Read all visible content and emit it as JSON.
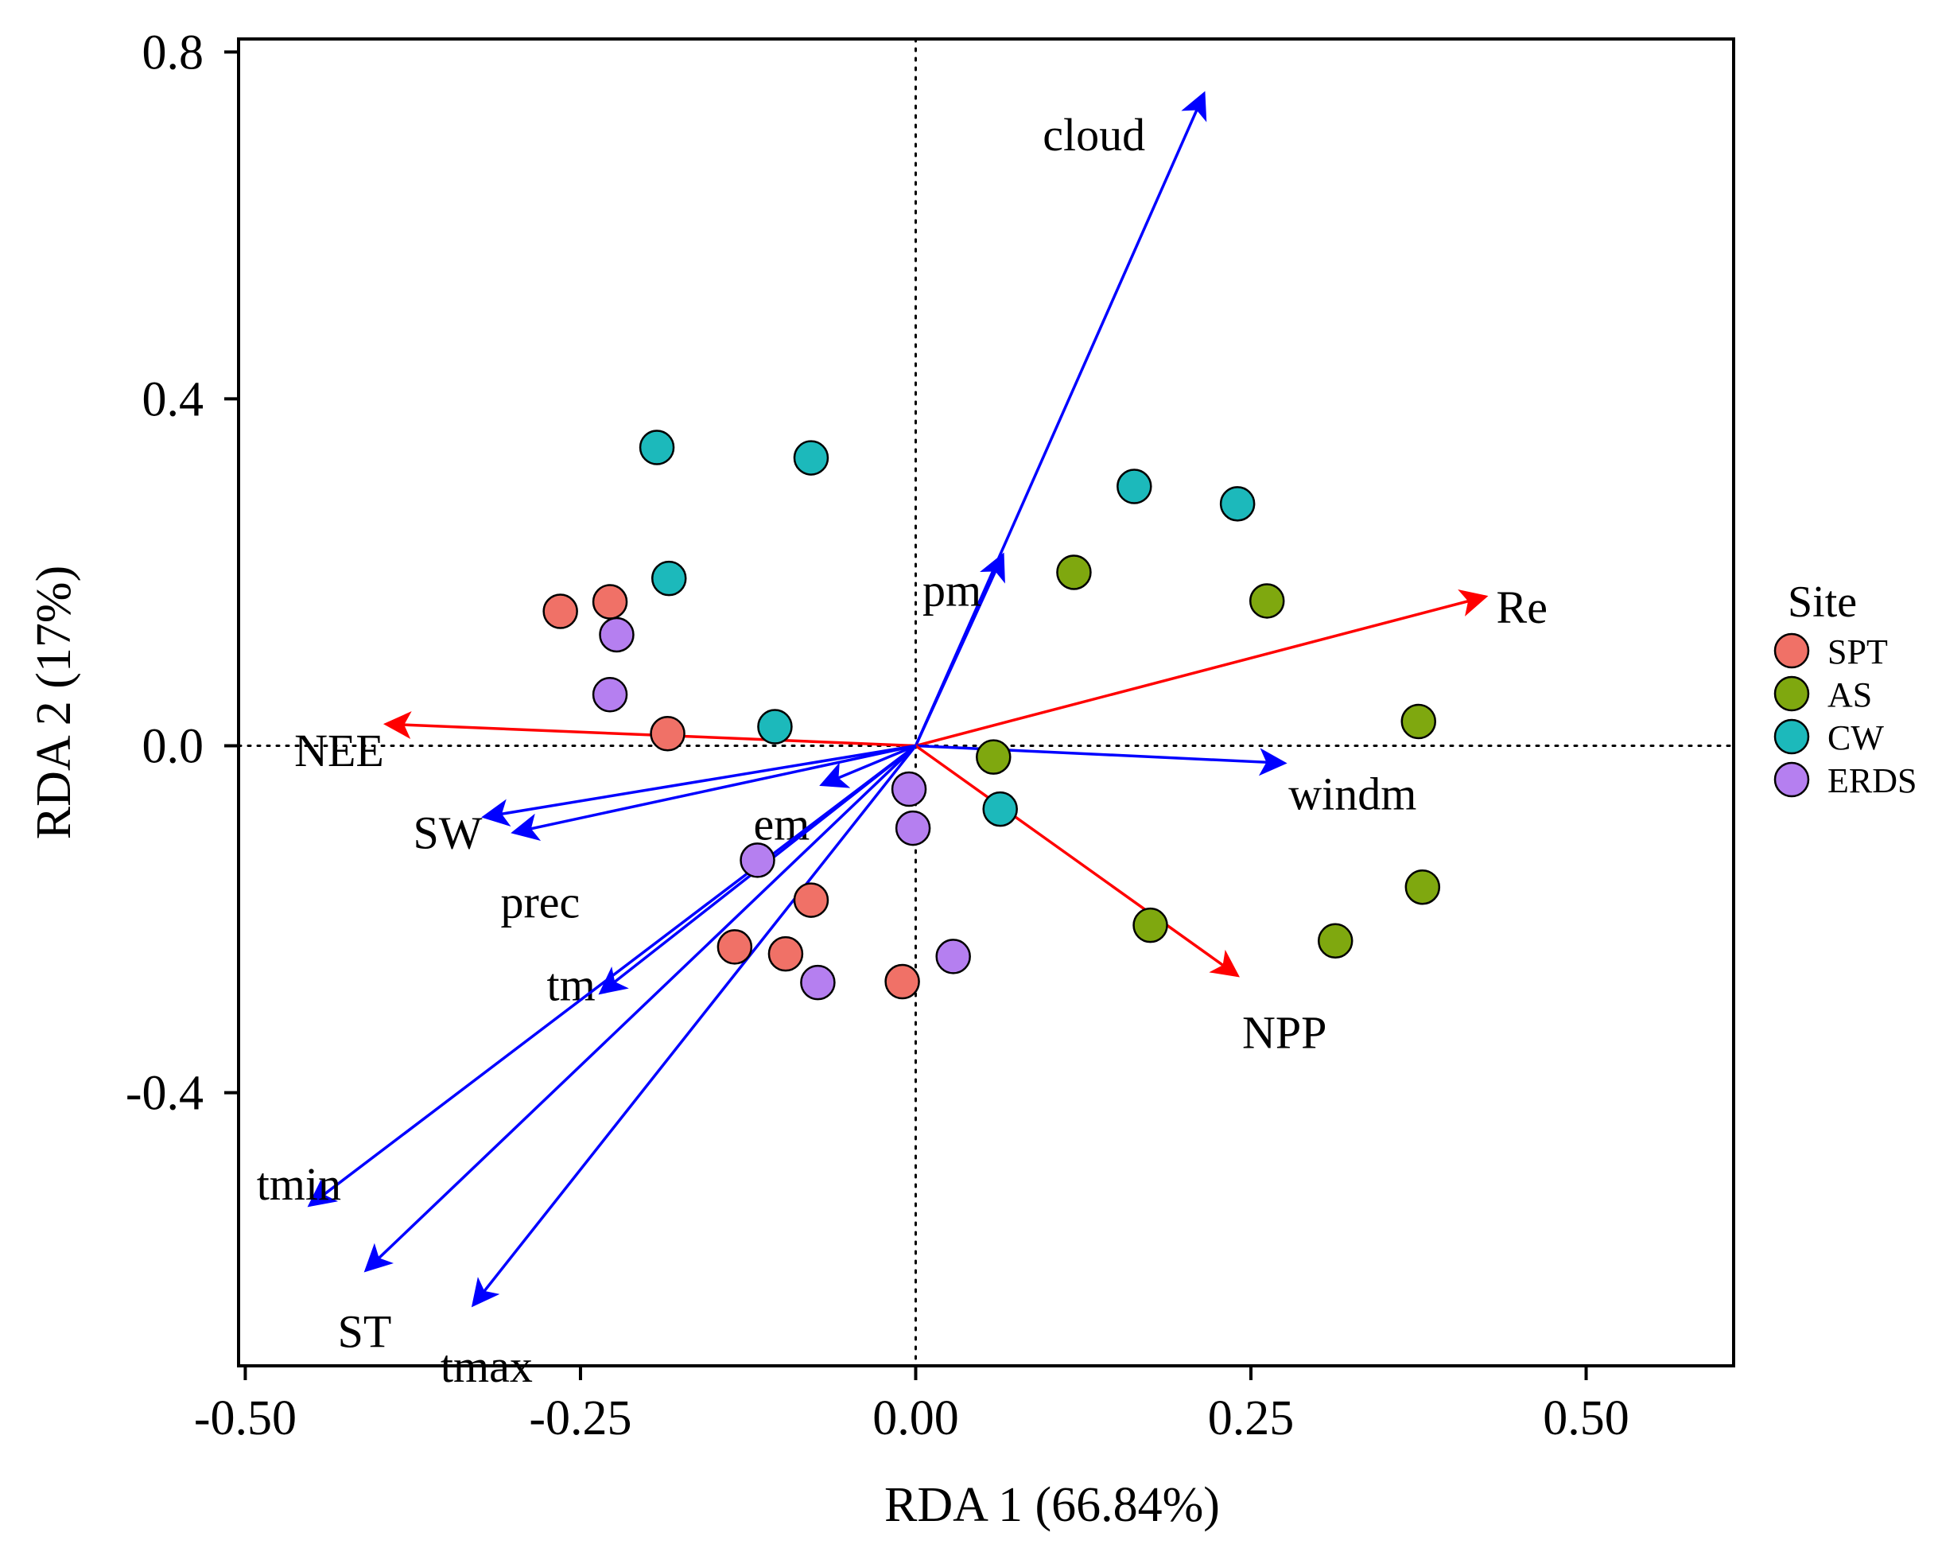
{
  "chart_data": {
    "type": "scatter",
    "subtype": "rda-biplot",
    "xlabel": "RDA 1 (66.84%)",
    "ylabel": "RDA 2 (17%)",
    "xlim": [
      -0.505,
      0.61
    ],
    "ylim": [
      -0.715,
      0.815
    ],
    "xticks": [
      -0.5,
      -0.25,
      0.0,
      0.25,
      0.5
    ],
    "xtick_labels": [
      "-0.50",
      "-0.25",
      "0.00",
      "0.25",
      "0.50"
    ],
    "yticks": [
      -0.4,
      0.0,
      0.4,
      0.8
    ],
    "ytick_labels": [
      "-0.4",
      "0.0",
      "0.4",
      "0.8"
    ],
    "reference_lines": {
      "x": 0,
      "y": 0,
      "style": "dotted"
    },
    "legend": {
      "title": "Site",
      "placement": "right"
    },
    "series": [
      {
        "name": "SPT",
        "color": "#f07167",
        "points": [
          [
            -0.265,
            0.155
          ],
          [
            -0.228,
            0.166
          ],
          [
            -0.185,
            0.014
          ],
          [
            -0.078,
            -0.178
          ],
          [
            -0.097,
            -0.24
          ],
          [
            -0.135,
            -0.232
          ],
          [
            -0.01,
            -0.272
          ]
        ]
      },
      {
        "name": "AS",
        "color": "#7fa80f",
        "points": [
          [
            0.118,
            0.2
          ],
          [
            0.262,
            0.167
          ],
          [
            0.375,
            0.028
          ],
          [
            0.058,
            -0.013
          ],
          [
            0.175,
            -0.207
          ],
          [
            0.313,
            -0.225
          ],
          [
            0.378,
            -0.163
          ]
        ]
      },
      {
        "name": "CW",
        "color": "#1cb9bb",
        "points": [
          [
            -0.193,
            0.344
          ],
          [
            -0.078,
            0.332
          ],
          [
            -0.184,
            0.193
          ],
          [
            -0.105,
            0.022
          ],
          [
            0.163,
            0.299
          ],
          [
            0.24,
            0.279
          ],
          [
            0.063,
            -0.073
          ]
        ]
      },
      {
        "name": "ERDS",
        "color": "#b57ff0",
        "points": [
          [
            -0.223,
            0.128
          ],
          [
            -0.228,
            0.059
          ],
          [
            -0.118,
            -0.132
          ],
          [
            -0.005,
            -0.05
          ],
          [
            -0.002,
            -0.095
          ],
          [
            -0.073,
            -0.273
          ],
          [
            0.028,
            -0.243
          ]
        ]
      }
    ],
    "vectors": [
      {
        "name": "cloud",
        "color": "#0000ff",
        "x": 0.215,
        "y": 0.752,
        "label_x": 0.133,
        "label_y": 0.705,
        "anchor": "middle"
      },
      {
        "name": "pm",
        "color": "#0000ff",
        "x": 0.065,
        "y": 0.22,
        "label_x": 0.027,
        "label_y": 0.18,
        "anchor": "middle"
      },
      {
        "name": "Re",
        "color": "#ff0000",
        "x": 0.425,
        "y": 0.172,
        "label_x": 0.433,
        "label_y": 0.16,
        "anchor": "start"
      },
      {
        "name": "windm",
        "color": "#0000ff",
        "x": 0.275,
        "y": -0.02,
        "label_x": 0.278,
        "label_y": -0.055,
        "anchor": "start"
      },
      {
        "name": "NPP",
        "color": "#ff0000",
        "x": 0.24,
        "y": -0.265,
        "label_x": 0.275,
        "label_y": -0.33,
        "anchor": "middle"
      },
      {
        "name": "NEE",
        "color": "#ff0000",
        "x": -0.395,
        "y": 0.025,
        "label_x": -0.43,
        "label_y": -0.005,
        "anchor": "middle"
      },
      {
        "name": "SW",
        "color": "#0000ff",
        "x": -0.322,
        "y": -0.082,
        "label_x": -0.349,
        "label_y": -0.1,
        "anchor": "middle"
      },
      {
        "name": "prec",
        "color": "#0000ff",
        "x": -0.3,
        "y": -0.1,
        "label_x": -0.28,
        "label_y": -0.18,
        "anchor": "middle"
      },
      {
        "name": "em",
        "color": "#0000ff",
        "x": -0.07,
        "y": -0.045,
        "label_x": -0.1,
        "label_y": -0.09,
        "anchor": "middle"
      },
      {
        "name": "tm",
        "color": "#0000ff",
        "x": -0.235,
        "y": -0.285,
        "label_x": -0.257,
        "label_y": -0.275,
        "anchor": "middle"
      },
      {
        "name": "tmin",
        "color": "#0000ff",
        "x": -0.452,
        "y": -0.53,
        "label_x": -0.46,
        "label_y": -0.505,
        "anchor": "middle"
      },
      {
        "name": "ST",
        "color": "#0000ff",
        "x": -0.41,
        "y": -0.605,
        "label_x": -0.411,
        "label_y": -0.675,
        "anchor": "middle"
      },
      {
        "name": "tmax",
        "color": "#0000ff",
        "x": -0.33,
        "y": -0.645,
        "label_x": -0.32,
        "label_y": -0.715,
        "anchor": "middle"
      }
    ]
  }
}
